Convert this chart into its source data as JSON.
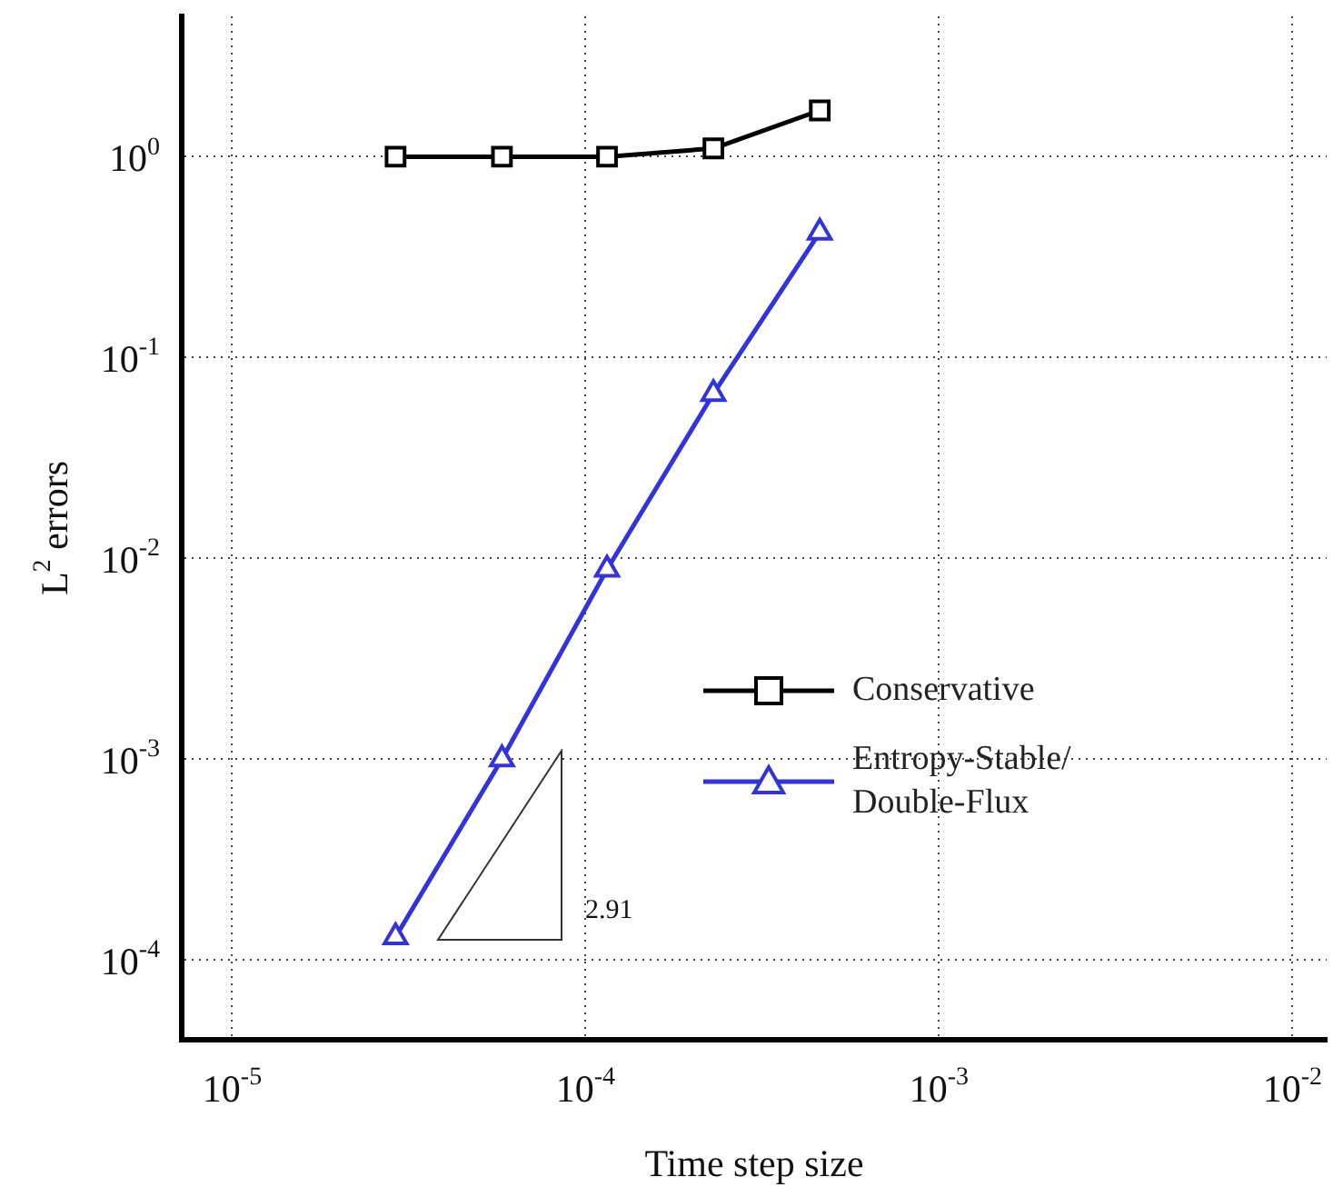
{
  "chart_data": {
    "type": "line",
    "xlabel": "Time step size",
    "ylabel": "L$^{2}$ errors",
    "log": "xy",
    "legend": "center right",
    "grid": true,
    "line_style": "solid",
    "x": [
      2.9e-05,
      5.8e-05,
      0.000115,
      0.00023,
      0.00046
    ],
    "xlim": [
      7.2e-06,
      0.0125
    ],
    "ylim": [
      4e-05,
      5
    ],
    "xticks": [
      {
        "value": 1e-05,
        "label": "10$^{-5}$"
      },
      {
        "value": 0.0001,
        "label": "10$^{-4}$"
      },
      {
        "value": 0.001,
        "label": "10$^{-3}$"
      },
      {
        "value": 0.01,
        "label": "10$^{-2}$"
      }
    ],
    "yticks": [
      {
        "value": 0.0001,
        "label": "10$^{-4}$"
      },
      {
        "value": 0.001,
        "label": "10$^{-3}$"
      },
      {
        "value": 0.01,
        "label": "10$^{-2}$"
      },
      {
        "value": 0.1,
        "label": "10$^{-1}$"
      },
      {
        "value": 1,
        "label": "10$^{0}$"
      }
    ],
    "series": [
      {
        "name": "Conservative",
        "color": "#000000",
        "marker": "square",
        "values": [
          1,
          1,
          1,
          1.1,
          1.7
        ]
      },
      {
        "name": "Entropy-Stable/Double-Flux",
        "color": "#3333dd",
        "marker": "triangle",
        "values": [
          0.00013,
          0.001,
          0.0088,
          0.066,
          0.42
        ]
      }
    ],
    "annotations": [
      "2.91"
    ]
  }
}
